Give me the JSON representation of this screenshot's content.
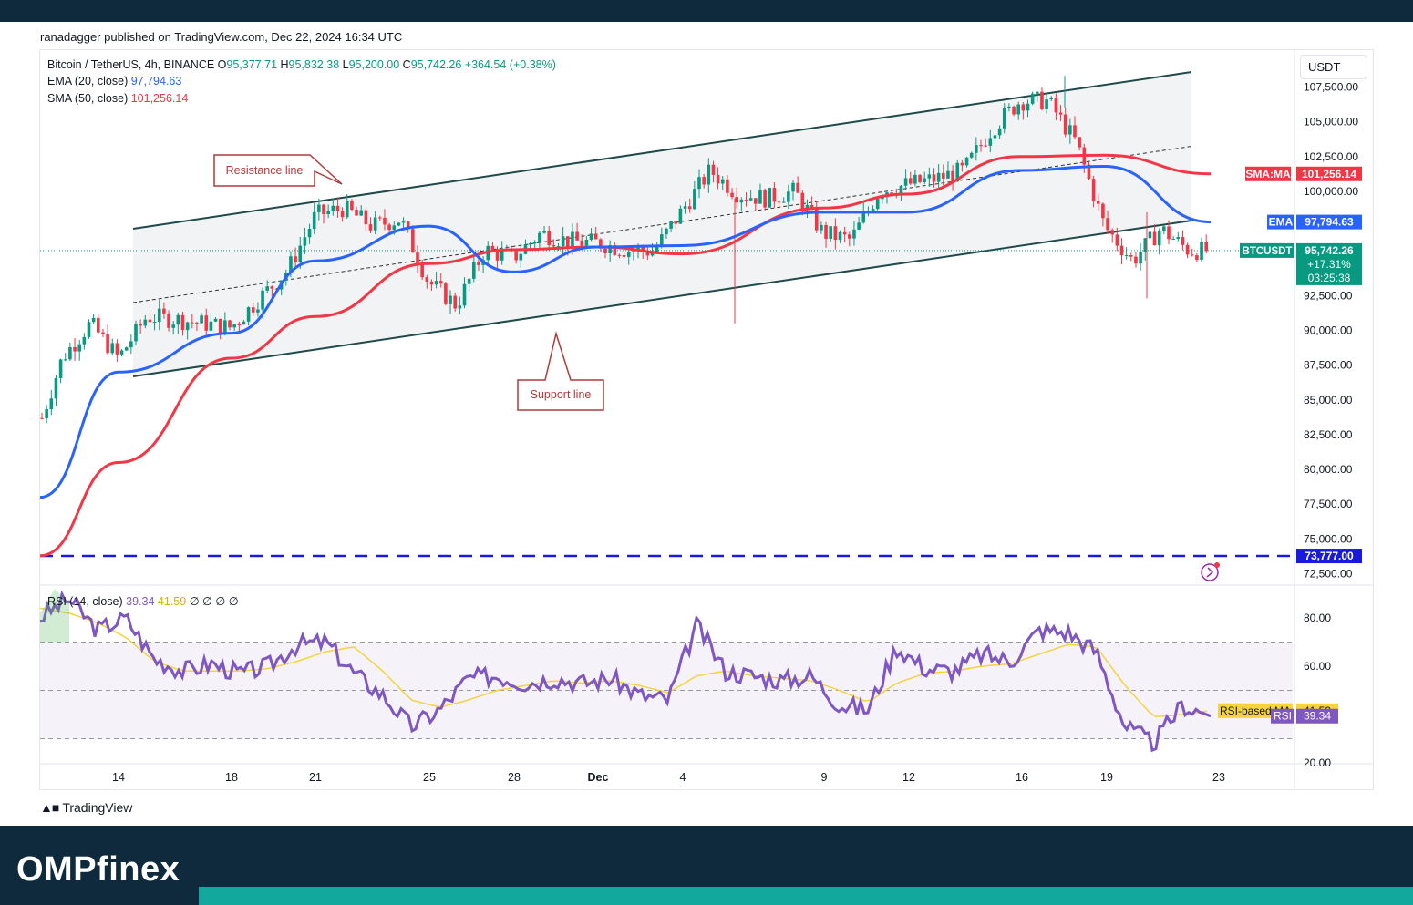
{
  "publisher_line": "ranadagger published on TradingView.com, Dec 22, 2024 16:34 UTC",
  "currency_selector": "USDT",
  "legend": {
    "symbol": "Bitcoin / TetherUS, 4h, BINANCE",
    "o_label": "O",
    "o": "95,377.71",
    "h_label": "H",
    "h": "95,832.38",
    "l_label": "L",
    "l": "95,200.00",
    "c_label": "C",
    "c": "95,742.26",
    "change": "+364.54 (+0.38%)",
    "ema_label": "EMA (20, close)",
    "ema_value": "97,794.63",
    "sma_label": "SMA (50, close)",
    "sma_value": "101,256.14",
    "rsi_label": "RSI (14, close)",
    "rsi_value": "39.34",
    "rsi_ma_value": "41.59",
    "rsi_extra": "∅ ∅ ∅ ∅"
  },
  "price_axis": [
    "107,500.00",
    "105,000.00",
    "102,500.00",
    "100,000.00",
    "92,500.00",
    "90,000.00",
    "87,500.00",
    "85,000.00",
    "82,500.00",
    "80,000.00",
    "77,500.00",
    "75,000.00",
    "72,500.00"
  ],
  "rsi_axis": [
    "80.00",
    "60.00",
    "20.00"
  ],
  "time_axis": [
    "14",
    "18",
    "21",
    "25",
    "28",
    "Dec",
    "4",
    "9",
    "12",
    "16",
    "19",
    "23"
  ],
  "price_tags": {
    "sma_label": "SMA:MA",
    "sma_value": "101,256.14",
    "ema_label": "EMA",
    "ema_value": "97,794.63",
    "symbol_label": "BTCUSDT",
    "price": "95,742.26",
    "pct": "+17.31%",
    "countdown": "03:25:38",
    "level": "73,777.00"
  },
  "rsi_tags": {
    "ma_label": "RSI-based MA",
    "ma_value": "41.59",
    "rsi_label": "RSI",
    "rsi_value": "39.34"
  },
  "annotations": {
    "resistance": "Resistance line",
    "support": "Support line"
  },
  "branding": {
    "tradingview": "TradingView",
    "footer_brand": "OMPfinex"
  },
  "colors": {
    "up": "#089981",
    "down": "#f23645",
    "ema": "#2962ff",
    "sma": "#f23645",
    "rsi": "#7e57c2",
    "rsi_ma": "#f5d33a",
    "level": "#1a1adf",
    "channel": "#1e4a4a",
    "annotation": "#b03a3a"
  },
  "chart_data": [
    {
      "type": "candlestick",
      "title": "Bitcoin / TetherUS, 4h, BINANCE",
      "x_ticks": [
        "14",
        "18",
        "21",
        "25",
        "28",
        "Dec",
        "4",
        "9",
        "12",
        "16",
        "19",
        "23"
      ],
      "ylim": [
        72000,
        109000
      ],
      "series": [
        {
          "name": "EMA (20, close)",
          "x": [
            "Nov 11",
            "Nov 14",
            "Nov 18",
            "Nov 21",
            "Nov 25",
            "Nov 28",
            "Dec 1",
            "Dec 4",
            "Dec 9",
            "Dec 12",
            "Dec 16",
            "Dec 19",
            "Dec 22"
          ],
          "values": [
            78000,
            87000,
            89800,
            95000,
            97500,
            94200,
            96000,
            96100,
            98500,
            98500,
            101500,
            101800,
            97794.63
          ]
        },
        {
          "name": "SMA (50, close)",
          "x": [
            "Nov 11",
            "Nov 14",
            "Nov 18",
            "Nov 21",
            "Nov 25",
            "Nov 28",
            "Dec 1",
            "Dec 4",
            "Dec 9",
            "Dec 12",
            "Dec 16",
            "Dec 19",
            "Dec 22"
          ],
          "values": [
            73800,
            80500,
            88000,
            91000,
            94800,
            95800,
            96000,
            95500,
            98800,
            99800,
            102500,
            102600,
            101256.14
          ]
        }
      ],
      "candles_approx": {
        "x": [
          "Nov 11",
          "Nov 12",
          "Nov 13",
          "Nov 14",
          "Nov 15",
          "Nov 16",
          "Nov 17",
          "Nov 18",
          "Nov 19",
          "Nov 20",
          "Nov 21",
          "Nov 22",
          "Nov 23",
          "Nov 24",
          "Nov 25",
          "Nov 26",
          "Nov 27",
          "Nov 28",
          "Nov 29",
          "Nov 30",
          "Dec 1",
          "Dec 2",
          "Dec 3",
          "Dec 4",
          "Dec 5",
          "Dec 6",
          "Dec 7",
          "Dec 8",
          "Dec 9",
          "Dec 10",
          "Dec 11",
          "Dec 12",
          "Dec 13",
          "Dec 14",
          "Dec 15",
          "Dec 16",
          "Dec 17",
          "Dec 18",
          "Dec 19",
          "Dec 20",
          "Dec 21",
          "Dec 22"
        ],
        "close": [
          82000,
          88000,
          90500,
          88000,
          91000,
          90800,
          90500,
          90200,
          92300,
          94300,
          98300,
          98800,
          97500,
          98000,
          93500,
          91800,
          95800,
          95200,
          97000,
          96400,
          96300,
          95800,
          95700,
          98600,
          101500,
          99800,
          99500,
          100000,
          97000,
          96500,
          100000,
          100500,
          100900,
          101500,
          104500,
          106500,
          106500,
          103500,
          97500,
          95000,
          97300,
          95742.26
        ]
      },
      "levels": [
        {
          "value": 73777.0,
          "style": "dashed"
        }
      ],
      "annotations": [
        "Resistance line",
        "Support line"
      ]
    },
    {
      "type": "line",
      "title": "RSI (14, close)",
      "ylim": [
        20,
        90
      ],
      "hlines": [
        70,
        50,
        30
      ],
      "series": [
        {
          "name": "RSI",
          "values": [
            80,
            88,
            75,
            80,
            63,
            58,
            61,
            57,
            60,
            69,
            70,
            57,
            48,
            35,
            42,
            55,
            56,
            53,
            55,
            53,
            55,
            48,
            46,
            77,
            58,
            56,
            54,
            56,
            44,
            42,
            68,
            59,
            58,
            65,
            62,
            75,
            74,
            66,
            35,
            28,
            44,
            39.34
          ]
        },
        {
          "name": "RSI-based MA",
          "values": [
            84,
            82,
            78,
            72,
            62,
            58,
            58,
            58,
            59,
            62,
            66,
            68,
            58,
            46,
            43,
            46,
            50,
            52,
            54,
            53,
            54,
            52,
            49,
            56,
            58,
            56,
            55,
            54,
            50,
            45,
            53,
            57,
            58,
            60,
            61,
            65,
            69,
            68,
            52,
            39,
            40,
            41.59
          ]
        }
      ]
    }
  ]
}
